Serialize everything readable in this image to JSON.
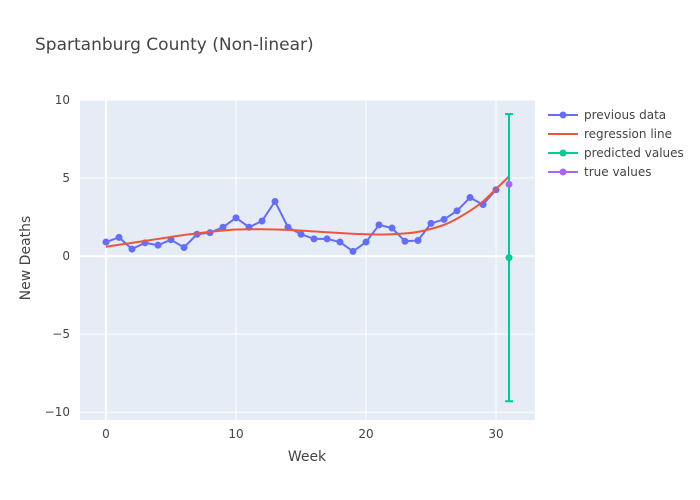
{
  "chart_data": {
    "type": "line",
    "title": "Spartanburg County (Non-linear)",
    "xlabel": "Week",
    "ylabel": "New Deaths",
    "xlim": [
      -2,
      33
    ],
    "ylim": [
      -10.5,
      10
    ],
    "x_ticks": [
      0,
      10,
      20,
      30
    ],
    "y_ticks": [
      -10,
      -5,
      0,
      5,
      10
    ],
    "y_tick_labels": [
      "−10",
      "−5",
      "0",
      "5",
      "10"
    ],
    "grid": true,
    "legend_position": "top-right",
    "series": [
      {
        "name": "previous data",
        "color": "#636efa",
        "mode": "lines+markers",
        "x": [
          0,
          1,
          2,
          3,
          4,
          5,
          6,
          7,
          8,
          9,
          10,
          11,
          12,
          13,
          14,
          15,
          16,
          17,
          18,
          19,
          20,
          21,
          22,
          23,
          24,
          25,
          26,
          27,
          28,
          29,
          30
        ],
        "y": [
          0.9,
          1.2,
          0.45,
          0.85,
          0.7,
          1.05,
          0.55,
          1.4,
          1.5,
          1.85,
          2.45,
          1.85,
          2.25,
          3.5,
          1.85,
          1.4,
          1.1,
          1.1,
          0.9,
          0.3,
          0.9,
          2.0,
          1.8,
          0.95,
          1.0,
          2.1,
          2.35,
          2.9,
          3.75,
          3.3,
          4.25
        ]
      },
      {
        "name": "regression line",
        "color": "#ef553b",
        "mode": "lines",
        "x": [
          0,
          2,
          4,
          6,
          8,
          10,
          12,
          14,
          16,
          18,
          20,
          22,
          24,
          26,
          27,
          28,
          29,
          30,
          31
        ],
        "y": [
          0.6,
          0.85,
          1.1,
          1.35,
          1.55,
          1.7,
          1.72,
          1.68,
          1.58,
          1.48,
          1.4,
          1.4,
          1.55,
          2.0,
          2.4,
          2.9,
          3.5,
          4.3,
          5.1
        ]
      },
      {
        "name": "predicted values",
        "color": "#00cc96",
        "mode": "markers",
        "x": [
          31
        ],
        "y": [
          -0.1
        ],
        "error_y": {
          "upper": 9.1,
          "lower": -9.3
        }
      },
      {
        "name": "true values",
        "color": "#ab63fa",
        "mode": "markers",
        "x": [
          31
        ],
        "y": [
          4.6
        ]
      }
    ]
  }
}
